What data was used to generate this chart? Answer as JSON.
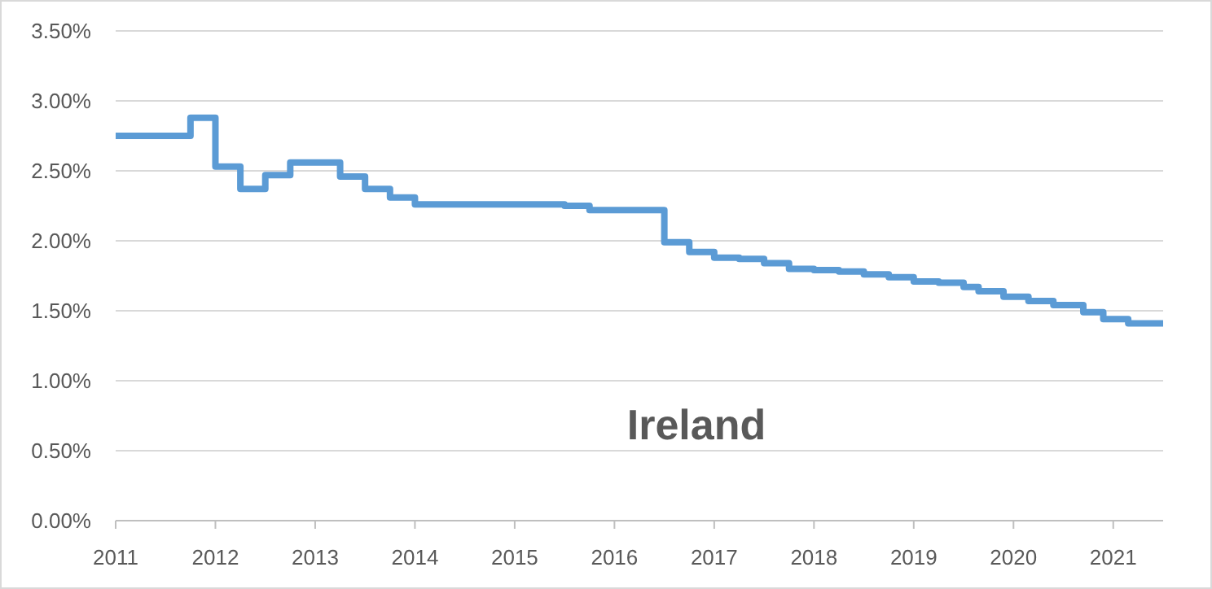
{
  "chart_data": {
    "type": "step",
    "title": "Ireland",
    "x": [
      2011,
      2011.75,
      2012,
      2012.25,
      2012.5,
      2012.75,
      2013.25,
      2013.5,
      2013.75,
      2014,
      2015.5,
      2015.75,
      2016.5,
      2016.75,
      2017,
      2017.25,
      2017.5,
      2017.75,
      2018,
      2018.25,
      2018.5,
      2018.75,
      2019,
      2019.25,
      2019.5,
      2019.65,
      2019.9,
      2020.15,
      2020.4,
      2020.7,
      2020.9,
      2021.15,
      2021.5
    ],
    "series": [
      {
        "color": "#5b9bd5",
        "values": [
          2.75,
          2.88,
          2.53,
          2.37,
          2.47,
          2.56,
          2.46,
          2.37,
          2.31,
          2.26,
          2.25,
          2.22,
          1.99,
          1.92,
          1.88,
          1.87,
          1.84,
          1.8,
          1.79,
          1.78,
          1.76,
          1.74,
          1.71,
          1.7,
          1.67,
          1.64,
          1.6,
          1.57,
          1.54,
          1.49,
          1.44,
          1.41,
          1.41
        ]
      }
    ],
    "xlim": [
      2011,
      2021.5
    ],
    "xticks": [
      2011,
      2012,
      2013,
      2014,
      2015,
      2016,
      2017,
      2018,
      2019,
      2020,
      2021
    ],
    "ylim": [
      0,
      3.5
    ],
    "yticks": [
      {
        "value": 0,
        "label": "0.00%"
      },
      {
        "value": 0.5,
        "label": "0.50%"
      },
      {
        "value": 1,
        "label": "1.00%"
      },
      {
        "value": 1.5,
        "label": "1.50%"
      },
      {
        "value": 2,
        "label": "2.00%"
      },
      {
        "value": 2.5,
        "label": "2.50%"
      },
      {
        "value": 3,
        "label": "3.00%"
      },
      {
        "value": 3.5,
        "label": "3.50%"
      }
    ],
    "grid": "y",
    "marker": "none",
    "line_style": "solid"
  }
}
